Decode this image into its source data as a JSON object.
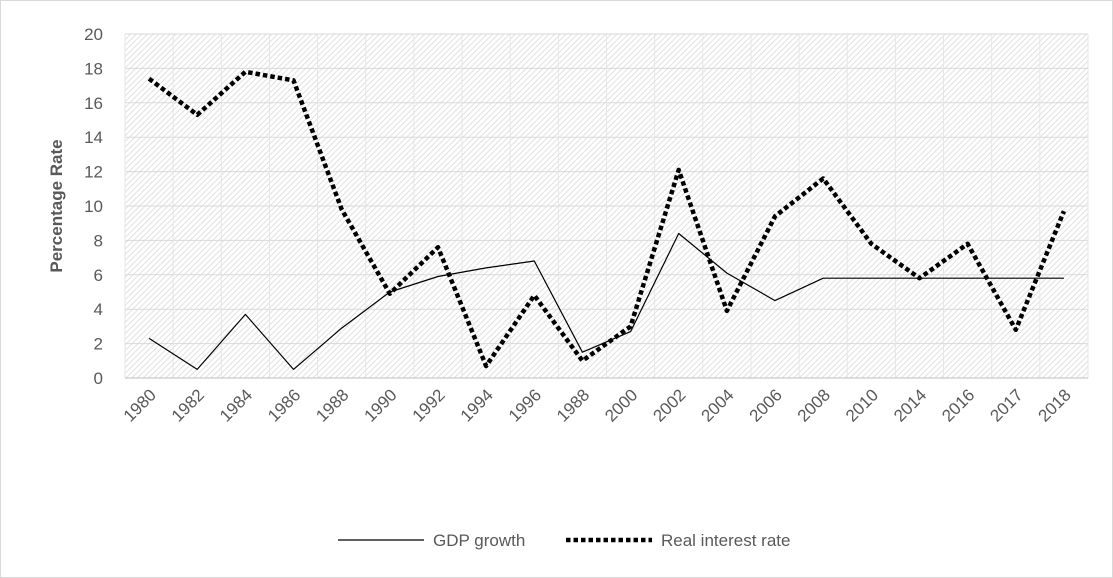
{
  "chart_data": {
    "type": "line",
    "title": "",
    "xlabel": "",
    "ylabel": "Percentage Rate",
    "categories": [
      "1980",
      "1982",
      "1984",
      "1986",
      "1988",
      "1990",
      "1992",
      "1994",
      "1996",
      "1988",
      "2000",
      "2002",
      "2004",
      "2006",
      "2008",
      "2010",
      "2014",
      "2016",
      "2017",
      "2018"
    ],
    "ylim": [
      0,
      20
    ],
    "yticks": [
      0,
      2,
      4,
      6,
      8,
      10,
      12,
      14,
      16,
      18,
      20
    ],
    "grid": true,
    "legend_position": "bottom",
    "series": [
      {
        "name": "GDP growth",
        "style": "solid",
        "color": "#000000",
        "values": [
          2.3,
          0.5,
          3.7,
          0.5,
          2.9,
          5.0,
          5.9,
          6.4,
          6.8,
          1.5,
          2.7,
          8.4,
          6.1,
          4.5,
          5.8,
          5.8,
          5.8,
          5.8,
          5.8,
          5.8
        ]
      },
      {
        "name": "Real interest rate",
        "style": "dotted",
        "color": "#000000",
        "values": [
          17.4,
          15.3,
          17.8,
          17.3,
          9.8,
          4.9,
          7.6,
          0.7,
          4.8,
          1.0,
          3.0,
          12.1,
          3.9,
          9.4,
          11.6,
          7.8,
          5.8,
          7.8,
          2.8,
          9.7
        ]
      }
    ]
  }
}
